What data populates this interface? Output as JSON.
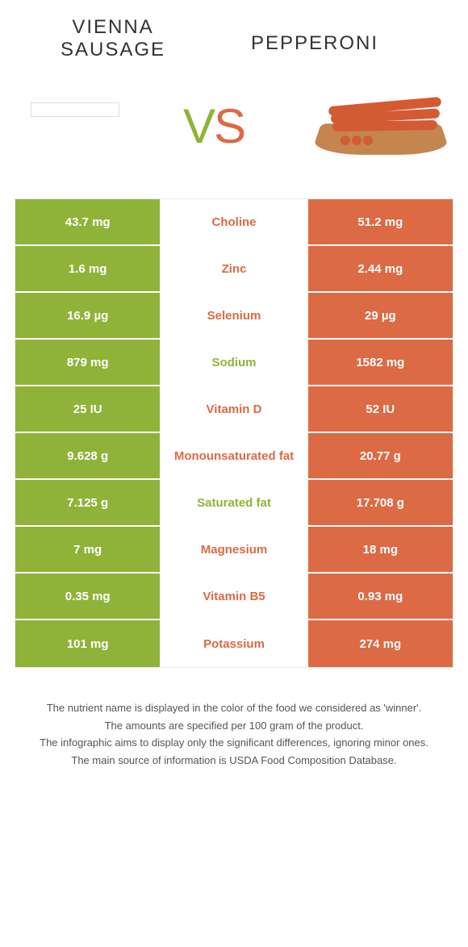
{
  "leftFood": {
    "title": "VIENNA SAUSAGE",
    "color": "#8fb339"
  },
  "rightFood": {
    "title": "PEPPERONI",
    "color": "#dc6a44"
  },
  "vs": {
    "v": "V",
    "s": "S"
  },
  "rows": [
    {
      "left": "43.7 mg",
      "mid": "Choline",
      "right": "51.2 mg",
      "winner": "right"
    },
    {
      "left": "1.6 mg",
      "mid": "Zinc",
      "right": "2.44 mg",
      "winner": "right"
    },
    {
      "left": "16.9 µg",
      "mid": "Selenium",
      "right": "29 µg",
      "winner": "right"
    },
    {
      "left": "879 mg",
      "mid": "Sodium",
      "right": "1582 mg",
      "winner": "left"
    },
    {
      "left": "25 IU",
      "mid": "Vitamin D",
      "right": "52 IU",
      "winner": "right"
    },
    {
      "left": "9.628 g",
      "mid": "Monounsaturated fat",
      "right": "20.77 g",
      "winner": "right"
    },
    {
      "left": "7.125 g",
      "mid": "Saturated fat",
      "right": "17.708 g",
      "winner": "left"
    },
    {
      "left": "7 mg",
      "mid": "Magnesium",
      "right": "18 mg",
      "winner": "right"
    },
    {
      "left": "0.35 mg",
      "mid": "Vitamin B5",
      "right": "0.93 mg",
      "winner": "right"
    },
    {
      "left": "101 mg",
      "mid": "Potassium",
      "right": "274 mg",
      "winner": "right"
    }
  ],
  "footer": [
    "The nutrient name is displayed in the color of the food we considered as 'winner'.",
    "The amounts are specified per 100 gram of the product.",
    "The infographic aims to display only the significant differences, ignoring minor ones.",
    "The main source of information is USDA Food Composition Database."
  ],
  "style": {
    "leftCellBg": "#8fb339",
    "rightCellBg": "#dc6a44",
    "midWinnerLeftColor": "#8fb339",
    "midWinnerRightColor": "#dc6a44"
  }
}
